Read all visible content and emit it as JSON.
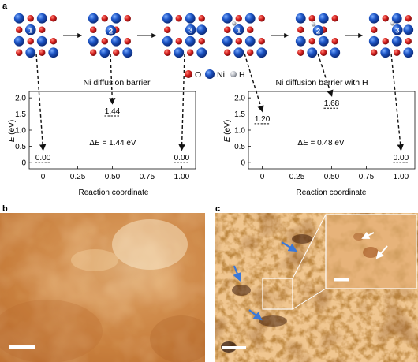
{
  "panels": {
    "a": "a",
    "b": "b",
    "c": "c"
  },
  "legend": {
    "o": "O",
    "ni": "Ni",
    "h": "H"
  },
  "colors": {
    "ni_blue": "#1f57c8",
    "o_red": "#d6201f",
    "h_grey": "#b8bcc4",
    "arrow": "#3a78d8"
  },
  "left_chart": {
    "title": "Ni diffusion barrier",
    "ylabel_e": "E",
    "ylabel_unit": " (eV)",
    "xlabel": "Reaction coordinate",
    "x_ticks": [
      "0",
      "0.25",
      "0.50",
      "0.75",
      "1.00"
    ],
    "y_ticks": [
      "0",
      "0.5",
      "1.0",
      "1.5",
      "2.0"
    ],
    "delta_sym": "Δ",
    "delta_e": "E",
    "delta_rest": " = 1.44 eV",
    "values": [
      "0.00",
      "1.44",
      "0.00"
    ]
  },
  "right_chart": {
    "title": "Ni diffusion barrier with H",
    "ylabel_e": "E",
    "ylabel_unit": " (eV)",
    "xlabel": "Reaction coordinate",
    "x_ticks": [
      "0",
      "0.25",
      "0.50",
      "0.75",
      "1.00"
    ],
    "y_ticks": [
      "0",
      "0.5",
      "1.0",
      "1.5",
      "2.0"
    ],
    "delta_sym": "Δ",
    "delta_e": "E",
    "delta_rest": " = 0.48 eV",
    "values": [
      "1.20",
      "1.68",
      "0.00"
    ]
  },
  "structures_left": [
    "1",
    "2",
    "3"
  ],
  "structures_right": [
    "1",
    "2",
    "3"
  ],
  "chart_data": [
    {
      "type": "scatter",
      "title": "Ni diffusion barrier",
      "xlabel": "Reaction coordinate",
      "ylabel": "E (eV)",
      "x": [
        0,
        0.5,
        1.0
      ],
      "y": [
        0.0,
        1.44,
        0.0
      ],
      "xlim": [
        -0.1,
        1.1
      ],
      "ylim": [
        -0.2,
        2.2
      ]
    },
    {
      "type": "scatter",
      "title": "Ni diffusion barrier with H",
      "xlabel": "Reaction coordinate",
      "ylabel": "E (eV)",
      "x": [
        0,
        0.5,
        1.0
      ],
      "y": [
        1.2,
        1.68,
        0.0
      ],
      "xlim": [
        -0.1,
        1.1
      ],
      "ylim": [
        -0.2,
        2.2
      ]
    }
  ]
}
